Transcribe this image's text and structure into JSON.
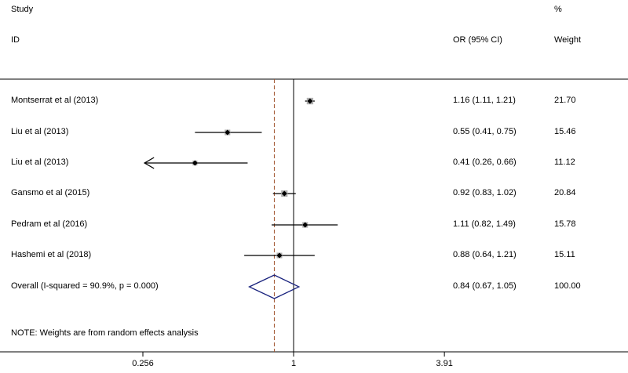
{
  "header": {
    "study": "Study",
    "percent": "%",
    "id": "ID",
    "or_ci": "OR (95% CI)",
    "weight": "Weight"
  },
  "note": "NOTE: Weights are from random effects analysis",
  "colors": {
    "ref_dash": "#a0522d",
    "diamond": "#1a237e",
    "box": "#b0b0b0",
    "line": "#000000"
  },
  "chart_data": {
    "type": "forest",
    "x_scale": "log",
    "x_ticks": [
      {
        "value": 0.256,
        "label": "0.256"
      },
      {
        "value": 1,
        "label": "1"
      },
      {
        "value": 3.91,
        "label": "3.91"
      }
    ],
    "null_value": 1,
    "studies": [
      {
        "name": "Montserrat et al  (2013)",
        "or": 1.16,
        "lo": 1.11,
        "hi": 1.21,
        "ci_text": "1.16 (1.11, 1.21)",
        "weight": "21.70"
      },
      {
        "name": "Liu et al  (2013)",
        "or": 0.55,
        "lo": 0.41,
        "hi": 0.75,
        "ci_text": "0.55 (0.41, 0.75)",
        "weight": "15.46"
      },
      {
        "name": "Liu et al  (2013)",
        "or": 0.41,
        "lo": 0.26,
        "hi": 0.66,
        "ci_text": "0.41 (0.26, 0.66)",
        "weight": "11.12",
        "arrow_left": true
      },
      {
        "name": "Gansmo et al  (2015)",
        "or": 0.92,
        "lo": 0.83,
        "hi": 1.02,
        "ci_text": "0.92 (0.83, 1.02)",
        "weight": "20.84"
      },
      {
        "name": "Pedram et al  (2016)",
        "or": 1.11,
        "lo": 0.82,
        "hi": 1.49,
        "ci_text": "1.11 (0.82, 1.49)",
        "weight": "15.78"
      },
      {
        "name": "Hashemi et al  (2018)",
        "or": 0.88,
        "lo": 0.64,
        "hi": 1.21,
        "ci_text": "0.88 (0.64, 1.21)",
        "weight": "15.11"
      }
    ],
    "overall": {
      "name": "Overall  (I-squared = 90.9%, p = 0.000)",
      "or": 0.84,
      "lo": 0.67,
      "hi": 1.05,
      "ci_text": "0.84 (0.67, 1.05)",
      "weight": "100.00"
    }
  }
}
